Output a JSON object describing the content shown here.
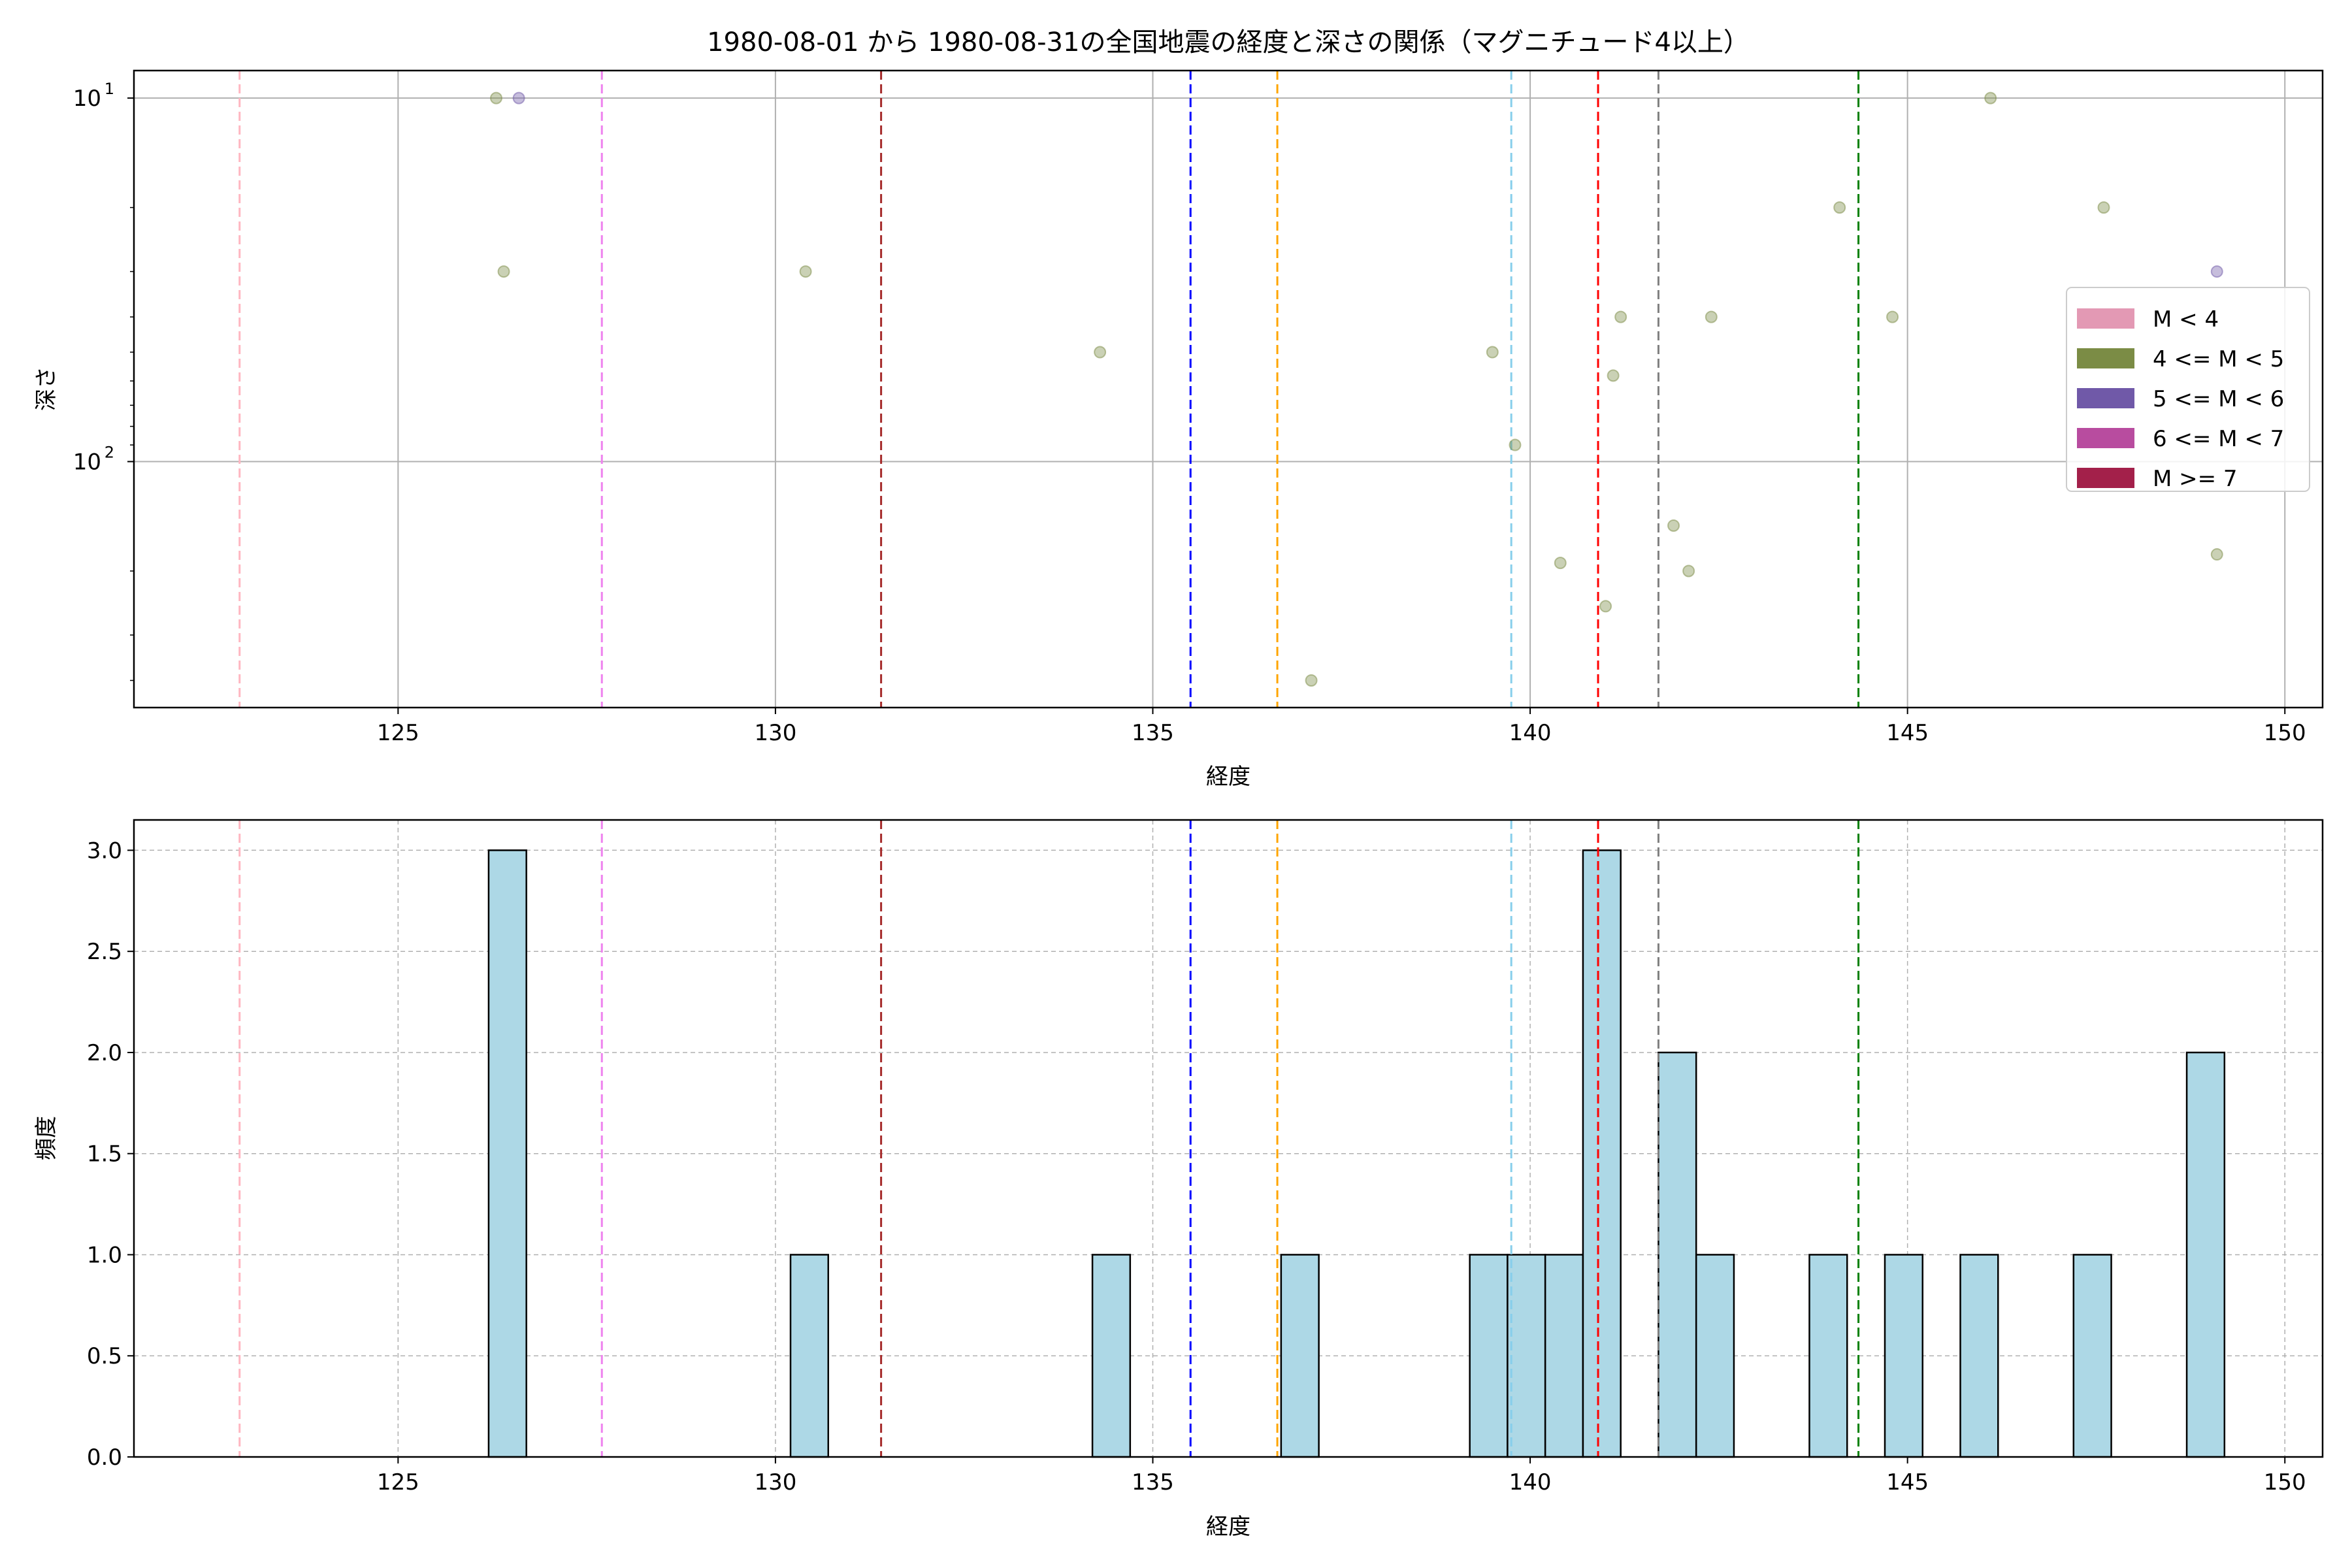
{
  "chart_data": [
    {
      "type": "scatter",
      "title": "1980-08-01 から 1980-08-31の全国地震の経度と深さの関係（マグニチュード4以上）",
      "xlabel": "経度",
      "ylabel": "深さ",
      "xlim": [
        121.5,
        150.5
      ],
      "ylim": [
        475,
        8.4
      ],
      "y_scale": "log",
      "y_inverted": true,
      "grid": true,
      "xticks": [
        "125",
        "130",
        "135",
        "140",
        "145",
        "150"
      ],
      "yticks": [
        {
          "base": "10",
          "exp": "1",
          "value": 10
        },
        {
          "base": "10",
          "exp": "2",
          "value": 100
        }
      ],
      "legend": {
        "placement": "center-right",
        "entries": [
          {
            "label": "M < 4",
            "color": "#e399b4"
          },
          {
            "label": "4 <= M < 5",
            "color": "#7b8c45"
          },
          {
            "label": "5 <= M < 6",
            "color": "#7059a8"
          },
          {
            "label": "6 <= M < 7",
            "color": "#b84c9f"
          },
          {
            "label": "M >= 7",
            "color": "#a3204a"
          }
        ]
      },
      "vlines": [
        {
          "x": 122.9,
          "color": "#ffb6c1"
        },
        {
          "x": 127.7,
          "color": "#ee82ee"
        },
        {
          "x": 131.4,
          "color": "#a52a2a"
        },
        {
          "x": 135.5,
          "color": "#0000ff"
        },
        {
          "x": 136.65,
          "color": "#ffa500"
        },
        {
          "x": 139.75,
          "color": "#87ceeb"
        },
        {
          "x": 140.9,
          "color": "#ff0000"
        },
        {
          "x": 141.7,
          "color": "#808080"
        },
        {
          "x": 144.35,
          "color": "#008000"
        }
      ],
      "series": [
        {
          "name": "4 <= M < 5",
          "color": "#7b8c45",
          "points": [
            {
              "x": 126.3,
              "y": 10
            },
            {
              "x": 126.4,
              "y": 30
            },
            {
              "x": 130.4,
              "y": 30
            },
            {
              "x": 134.3,
              "y": 50
            },
            {
              "x": 137.1,
              "y": 400
            },
            {
              "x": 139.5,
              "y": 50
            },
            {
              "x": 139.8,
              "y": 90
            },
            {
              "x": 140.4,
              "y": 190
            },
            {
              "x": 141.0,
              "y": 250
            },
            {
              "x": 141.1,
              "y": 58
            },
            {
              "x": 141.2,
              "y": 40
            },
            {
              "x": 141.9,
              "y": 150
            },
            {
              "x": 142.1,
              "y": 200
            },
            {
              "x": 142.4,
              "y": 40
            },
            {
              "x": 144.1,
              "y": 20
            },
            {
              "x": 144.8,
              "y": 40
            },
            {
              "x": 146.1,
              "y": 10
            },
            {
              "x": 147.6,
              "y": 20
            },
            {
              "x": 149.1,
              "y": 180
            }
          ]
        },
        {
          "name": "5 <= M < 6",
          "color": "#7059a8",
          "points": [
            {
              "x": 126.6,
              "y": 10
            },
            {
              "x": 149.1,
              "y": 30
            }
          ]
        }
      ]
    },
    {
      "type": "bar",
      "xlabel": "経度",
      "ylabel": "頻度",
      "xlim": [
        121.5,
        150.5
      ],
      "ylim": [
        0,
        3.15
      ],
      "grid": true,
      "bar_color": "#add8e6",
      "xticks": [
        "125",
        "130",
        "135",
        "140",
        "145",
        "150"
      ],
      "yticks": [
        "0.0",
        "0.5",
        "1.0",
        "1.5",
        "2.0",
        "2.5",
        "3.0"
      ],
      "bins": [
        {
          "x0": 126.2,
          "x1": 126.7,
          "count": 3
        },
        {
          "x0": 130.2,
          "x1": 130.7,
          "count": 1
        },
        {
          "x0": 134.2,
          "x1": 134.7,
          "count": 1
        },
        {
          "x0": 136.7,
          "x1": 137.2,
          "count": 1
        },
        {
          "x0": 139.2,
          "x1": 139.7,
          "count": 1
        },
        {
          "x0": 139.7,
          "x1": 140.2,
          "count": 1
        },
        {
          "x0": 140.2,
          "x1": 140.7,
          "count": 1
        },
        {
          "x0": 140.7,
          "x1": 141.2,
          "count": 3
        },
        {
          "x0": 141.7,
          "x1": 142.2,
          "count": 2
        },
        {
          "x0": 142.2,
          "x1": 142.7,
          "count": 1
        },
        {
          "x0": 143.7,
          "x1": 144.2,
          "count": 1
        },
        {
          "x0": 144.7,
          "x1": 145.2,
          "count": 1
        },
        {
          "x0": 145.7,
          "x1": 146.2,
          "count": 1
        },
        {
          "x0": 147.2,
          "x1": 147.7,
          "count": 1
        },
        {
          "x0": 148.7,
          "x1": 149.2,
          "count": 2
        }
      ],
      "vlines": [
        {
          "x": 122.9,
          "color": "#ffb6c1"
        },
        {
          "x": 127.7,
          "color": "#ee82ee"
        },
        {
          "x": 131.4,
          "color": "#a52a2a"
        },
        {
          "x": 135.5,
          "color": "#0000ff"
        },
        {
          "x": 136.65,
          "color": "#ffa500"
        },
        {
          "x": 139.75,
          "color": "#87ceeb"
        },
        {
          "x": 140.9,
          "color": "#ff0000"
        },
        {
          "x": 141.7,
          "color": "#808080"
        },
        {
          "x": 144.35,
          "color": "#008000"
        }
      ]
    }
  ]
}
